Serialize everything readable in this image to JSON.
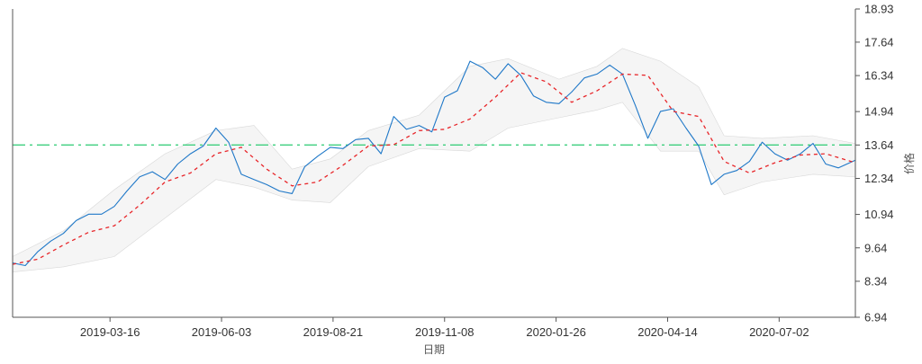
{
  "chart_data": {
    "type": "line",
    "xlabel": "日期",
    "ylabel": "价格",
    "x_ticks": [
      "2019-03-16",
      "2019-06-03",
      "2019-08-21",
      "2019-11-08",
      "2020-01-26",
      "2020-04-14",
      "2020-07-02"
    ],
    "y_ticks": [
      "6.94",
      "8.34",
      "9.64",
      "10.94",
      "12.34",
      "13.64",
      "14.94",
      "16.34",
      "17.64",
      "18.93"
    ],
    "ylim": [
      6.94,
      18.93
    ],
    "xlim": [
      "2019-01-06",
      "2020-08-25"
    ],
    "grid": false,
    "reference_line": {
      "value": 13.64,
      "style": "dash-dot",
      "color": "#3ecf7f"
    },
    "series": [
      {
        "style": "solid",
        "color": "#1f78c8",
        "points": [
          [
            "2019-01-06",
            9.05
          ],
          [
            "2019-01-15",
            8.95
          ],
          [
            "2019-01-24",
            9.5
          ],
          [
            "2019-02-02",
            9.9
          ],
          [
            "2019-02-11",
            10.2
          ],
          [
            "2019-02-20",
            10.7
          ],
          [
            "2019-03-01",
            10.95
          ],
          [
            "2019-03-10",
            10.95
          ],
          [
            "2019-03-19",
            11.25
          ],
          [
            "2019-03-28",
            11.85
          ],
          [
            "2019-04-06",
            12.4
          ],
          [
            "2019-04-15",
            12.6
          ],
          [
            "2019-04-24",
            12.3
          ],
          [
            "2019-05-03",
            12.9
          ],
          [
            "2019-05-12",
            13.3
          ],
          [
            "2019-05-21",
            13.6
          ],
          [
            "2019-05-30",
            14.3
          ],
          [
            "2019-06-08",
            13.75
          ],
          [
            "2019-06-17",
            12.5
          ],
          [
            "2019-06-26",
            12.3
          ],
          [
            "2019-07-05",
            12.1
          ],
          [
            "2019-07-14",
            11.85
          ],
          [
            "2019-07-23",
            11.75
          ],
          [
            "2019-08-01",
            12.8
          ],
          [
            "2019-08-10",
            13.2
          ],
          [
            "2019-08-19",
            13.55
          ],
          [
            "2019-08-28",
            13.5
          ],
          [
            "2019-09-06",
            13.85
          ],
          [
            "2019-09-15",
            13.9
          ],
          [
            "2019-09-24",
            13.3
          ],
          [
            "2019-10-03",
            14.75
          ],
          [
            "2019-10-12",
            14.25
          ],
          [
            "2019-10-21",
            14.4
          ],
          [
            "2019-10-30",
            14.15
          ],
          [
            "2019-11-08",
            15.5
          ],
          [
            "2019-11-17",
            15.75
          ],
          [
            "2019-11-26",
            16.9
          ],
          [
            "2019-12-05",
            16.65
          ],
          [
            "2019-12-14",
            16.2
          ],
          [
            "2019-12-23",
            16.8
          ],
          [
            "2020-01-01",
            16.35
          ],
          [
            "2020-01-10",
            15.55
          ],
          [
            "2020-01-19",
            15.3
          ],
          [
            "2020-01-28",
            15.25
          ],
          [
            "2020-02-06",
            15.7
          ],
          [
            "2020-02-15",
            16.25
          ],
          [
            "2020-02-24",
            16.4
          ],
          [
            "2020-03-04",
            16.75
          ],
          [
            "2020-03-13",
            16.4
          ],
          [
            "2020-03-22",
            15.2
          ],
          [
            "2020-03-31",
            13.9
          ],
          [
            "2020-04-09",
            14.95
          ],
          [
            "2020-04-18",
            15.05
          ],
          [
            "2020-04-27",
            14.3
          ],
          [
            "2020-05-06",
            13.6
          ],
          [
            "2020-05-15",
            12.1
          ],
          [
            "2020-05-24",
            12.5
          ],
          [
            "2020-06-02",
            12.65
          ],
          [
            "2020-06-11",
            13.0
          ],
          [
            "2020-06-20",
            13.75
          ],
          [
            "2020-06-29",
            13.3
          ],
          [
            "2020-07-08",
            13.05
          ],
          [
            "2020-07-17",
            13.3
          ],
          [
            "2020-07-26",
            13.7
          ],
          [
            "2020-08-04",
            12.9
          ],
          [
            "2020-08-13",
            12.75
          ],
          [
            "2020-08-25",
            13.05
          ]
        ]
      },
      {
        "style": "dashed",
        "color": "#e8262a",
        "points": [
          [
            "2019-01-06",
            9.0
          ],
          [
            "2019-01-24",
            9.2
          ],
          [
            "2019-02-11",
            9.75
          ],
          [
            "2019-03-01",
            10.25
          ],
          [
            "2019-03-19",
            10.5
          ],
          [
            "2019-04-06",
            11.3
          ],
          [
            "2019-04-24",
            12.2
          ],
          [
            "2019-05-12",
            12.55
          ],
          [
            "2019-05-30",
            13.3
          ],
          [
            "2019-06-17",
            13.55
          ],
          [
            "2019-07-05",
            12.7
          ],
          [
            "2019-07-23",
            12.05
          ],
          [
            "2019-08-10",
            12.2
          ],
          [
            "2019-08-28",
            12.85
          ],
          [
            "2019-09-15",
            13.6
          ],
          [
            "2019-10-03",
            13.65
          ],
          [
            "2019-10-21",
            14.2
          ],
          [
            "2019-11-08",
            14.25
          ],
          [
            "2019-11-26",
            14.65
          ],
          [
            "2019-12-14",
            15.5
          ],
          [
            "2020-01-01",
            16.45
          ],
          [
            "2020-01-19",
            16.1
          ],
          [
            "2020-02-06",
            15.3
          ],
          [
            "2020-02-24",
            15.75
          ],
          [
            "2020-03-13",
            16.4
          ],
          [
            "2020-03-31",
            16.35
          ],
          [
            "2020-04-18",
            14.95
          ],
          [
            "2020-05-06",
            14.75
          ],
          [
            "2020-05-24",
            13.0
          ],
          [
            "2020-06-11",
            12.55
          ],
          [
            "2020-06-29",
            12.95
          ],
          [
            "2020-07-17",
            13.25
          ],
          [
            "2020-08-04",
            13.3
          ],
          [
            "2020-08-25",
            12.95
          ]
        ]
      }
    ],
    "band": {
      "color": "#e8e8e8",
      "upper": [
        [
          "2019-01-06",
          9.3
        ],
        [
          "2019-02-11",
          10.3
        ],
        [
          "2019-03-19",
          11.9
        ],
        [
          "2019-04-24",
          13.3
        ],
        [
          "2019-05-30",
          14.2
        ],
        [
          "2019-06-26",
          14.4
        ],
        [
          "2019-07-23",
          12.7
        ],
        [
          "2019-08-19",
          13.1
        ],
        [
          "2019-09-15",
          14.2
        ],
        [
          "2019-10-21",
          14.8
        ],
        [
          "2019-11-26",
          16.7
        ],
        [
          "2019-12-23",
          17.0
        ],
        [
          "2020-01-28",
          16.2
        ],
        [
          "2020-02-24",
          16.7
        ],
        [
          "2020-03-13",
          17.4
        ],
        [
          "2020-04-09",
          16.9
        ],
        [
          "2020-05-06",
          15.9
        ],
        [
          "2020-05-24",
          14.0
        ],
        [
          "2020-06-20",
          13.9
        ],
        [
          "2020-07-26",
          14.0
        ],
        [
          "2020-08-25",
          13.7
        ]
      ],
      "lower": [
        [
          "2019-01-06",
          8.7
        ],
        [
          "2019-02-11",
          8.9
        ],
        [
          "2019-03-19",
          9.3
        ],
        [
          "2019-04-24",
          10.8
        ],
        [
          "2019-05-30",
          12.3
        ],
        [
          "2019-06-26",
          12.0
        ],
        [
          "2019-07-23",
          11.5
        ],
        [
          "2019-08-19",
          11.4
        ],
        [
          "2019-09-15",
          12.8
        ],
        [
          "2019-10-21",
          13.5
        ],
        [
          "2019-11-26",
          13.4
        ],
        [
          "2019-12-23",
          14.3
        ],
        [
          "2020-01-28",
          14.7
        ],
        [
          "2020-02-24",
          15.0
        ],
        [
          "2020-03-13",
          15.3
        ],
        [
          "2020-04-09",
          13.4
        ],
        [
          "2020-05-06",
          13.4
        ],
        [
          "2020-05-24",
          11.7
        ],
        [
          "2020-06-20",
          12.2
        ],
        [
          "2020-07-26",
          12.5
        ],
        [
          "2020-08-25",
          12.4
        ]
      ]
    }
  }
}
